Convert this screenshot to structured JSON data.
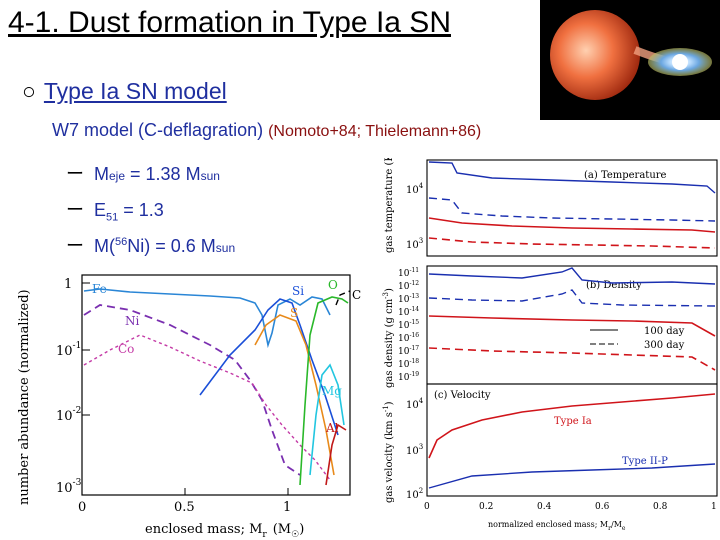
{
  "slide": {
    "title": "4-1. Dust formation in Type Ia SN",
    "bullet_marker": "○",
    "bullet_text": "Type Ia SN model",
    "w7_text": "W7 model (C-deflagration)",
    "w7_ref": "(Nomoto+84; Thielemann+86)",
    "dash": "ー",
    "items": [
      {
        "pre": "M",
        "sub": "eje",
        "mid": " = 1.38 M",
        "sub2": "sun"
      },
      {
        "pre": "E",
        "sub": "51",
        "mid": " = 1.3",
        "sub2": ""
      },
      {
        "pre": "M(",
        "sup": "56",
        "mid": "Ni) = 0.6 M",
        "sub2": "sun"
      }
    ]
  },
  "left_plot": {
    "ylabel": "number abundance (normalized)",
    "xlabel": "enclosed mass; M",
    "xlabel_sub": "r",
    "xlabel_unit": "(M",
    "xlabel_unit_end": ")",
    "xticks": [
      "0",
      "0.5",
      "1"
    ],
    "yticks": [
      "1",
      "10",
      "10",
      "10"
    ],
    "ytick_exps": [
      "",
      "-1",
      "-2",
      "-3"
    ],
    "species": [
      "Fe",
      "Ni",
      "Co",
      "Si",
      "S",
      "O",
      "C",
      "Mg",
      "Al"
    ]
  },
  "right_plot": {
    "panel_a": {
      "label": "(a) Temperature",
      "ylabel": "gas temperature (K)",
      "yticks": [
        "10",
        "10"
      ],
      "exps": [
        "4",
        "3"
      ]
    },
    "panel_b": {
      "label": "(b) Density",
      "ylabel": "gas density (g cm",
      "ylabel_exp": "-3",
      "ylabel_end": ")",
      "yticks": [
        "10",
        "10",
        "10",
        "10",
        "10",
        "10",
        "10",
        "10",
        "10"
      ],
      "exps": [
        "-11",
        "-12",
        "-13",
        "-14",
        "-15",
        "-16",
        "-17",
        "-18",
        "-19"
      ],
      "legend": [
        "100 day",
        "300 day"
      ]
    },
    "panel_c": {
      "label": "(c) Velocity",
      "ylabel": "gas velocity (km s",
      "ylabel_exp": "-1",
      "ylabel_end": ")",
      "yticks": [
        "10",
        "10",
        "10"
      ],
      "exps": [
        "4",
        "3",
        "2"
      ],
      "series": [
        "Type Ia",
        "Type II-P"
      ]
    },
    "xticks": [
      "0",
      "0.2",
      "0.4",
      "0.6",
      "0.8",
      "1"
    ],
    "xlabel": "normalized enclosed mass; M",
    "xlabel_sub": "r",
    "xlabel_mid": "/M",
    "xlabel_sub2": "e"
  },
  "colors": {
    "blue_text": "#1f2f9f",
    "ref_red": "#8a1010",
    "curve_red": "#d0141a",
    "curve_blue": "#1a2fb0"
  }
}
